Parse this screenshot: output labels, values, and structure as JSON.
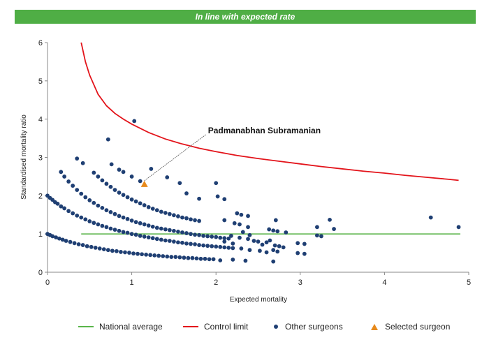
{
  "banner": {
    "text": "In line with expected rate"
  },
  "colors": {
    "banner": "#4fae45",
    "national_average": "#5ab54b",
    "control_limit": "#e3141b",
    "other_surgeons": "#1f3f73",
    "selected_surgeon": "#e78a1c"
  },
  "chart_data": {
    "type": "scatter",
    "title": "",
    "xlabel": "Expected mortality",
    "ylabel": "Standardised mortality ratio",
    "xlim": [
      0,
      5
    ],
    "ylim": [
      0,
      6
    ],
    "xticks": [
      0,
      1,
      2,
      3,
      4,
      5
    ],
    "yticks": [
      0,
      1,
      2,
      3,
      4,
      5,
      6
    ],
    "grid": false,
    "legend_position": "bottom",
    "national_average": {
      "name": "National average",
      "y": 1,
      "x_range": [
        0.4,
        4.9
      ]
    },
    "control_limit": {
      "name": "Control limit",
      "points": [
        [
          0.4,
          6.0
        ],
        [
          0.45,
          5.5
        ],
        [
          0.5,
          5.15
        ],
        [
          0.6,
          4.65
        ],
        [
          0.7,
          4.35
        ],
        [
          0.8,
          4.15
        ],
        [
          0.9,
          4.0
        ],
        [
          1.0,
          3.87
        ],
        [
          1.2,
          3.65
        ],
        [
          1.4,
          3.48
        ],
        [
          1.6,
          3.35
        ],
        [
          1.8,
          3.24
        ],
        [
          2.0,
          3.15
        ],
        [
          2.25,
          3.05
        ],
        [
          2.5,
          2.97
        ],
        [
          2.75,
          2.9
        ],
        [
          3.0,
          2.83
        ],
        [
          3.25,
          2.76
        ],
        [
          3.5,
          2.7
        ],
        [
          3.75,
          2.64
        ],
        [
          4.0,
          2.59
        ],
        [
          4.25,
          2.53
        ],
        [
          4.5,
          2.48
        ],
        [
          4.75,
          2.43
        ],
        [
          4.88,
          2.4
        ]
      ]
    },
    "selected_surgeon": {
      "name": "Selected surgeon",
      "label": "Padmanabhan Subramanian",
      "x": 1.15,
      "y": 2.3
    },
    "other_surgeons": {
      "name": "Other surgeons",
      "points": [
        [
          0.0,
          2.0
        ],
        [
          0.03,
          1.94
        ],
        [
          0.06,
          1.89
        ],
        [
          0.09,
          1.83
        ],
        [
          0.12,
          1.79
        ],
        [
          0.16,
          1.72
        ],
        [
          0.2,
          1.67
        ],
        [
          0.25,
          1.6
        ],
        [
          0.3,
          1.54
        ],
        [
          0.35,
          1.48
        ],
        [
          0.4,
          1.43
        ],
        [
          0.45,
          1.38
        ],
        [
          0.5,
          1.33
        ],
        [
          0.55,
          1.29
        ],
        [
          0.6,
          1.25
        ],
        [
          0.65,
          1.21
        ],
        [
          0.7,
          1.18
        ],
        [
          0.75,
          1.14
        ],
        [
          0.8,
          1.11
        ],
        [
          0.85,
          1.08
        ],
        [
          0.9,
          1.05
        ],
        [
          0.95,
          1.03
        ],
        [
          1.0,
          1.0
        ],
        [
          1.05,
          0.98
        ],
        [
          1.1,
          0.95
        ],
        [
          1.15,
          0.93
        ],
        [
          1.2,
          0.91
        ],
        [
          1.25,
          0.89
        ],
        [
          1.3,
          0.87
        ],
        [
          1.35,
          0.85
        ],
        [
          1.4,
          0.83
        ],
        [
          1.45,
          0.82
        ],
        [
          1.5,
          0.8
        ],
        [
          1.55,
          0.78
        ],
        [
          1.6,
          0.77
        ],
        [
          1.65,
          0.75
        ],
        [
          1.7,
          0.74
        ],
        [
          1.75,
          0.73
        ],
        [
          1.8,
          0.71
        ],
        [
          1.85,
          0.7
        ],
        [
          1.9,
          0.69
        ],
        [
          1.95,
          0.68
        ],
        [
          2.0,
          0.67
        ],
        [
          2.05,
          0.66
        ],
        [
          2.1,
          0.65
        ],
        [
          2.15,
          0.64
        ],
        [
          2.2,
          0.63
        ],
        [
          0.0,
          1.0
        ],
        [
          0.03,
          0.97
        ],
        [
          0.06,
          0.94
        ],
        [
          0.1,
          0.91
        ],
        [
          0.14,
          0.88
        ],
        [
          0.18,
          0.85
        ],
        [
          0.22,
          0.82
        ],
        [
          0.27,
          0.79
        ],
        [
          0.32,
          0.76
        ],
        [
          0.37,
          0.73
        ],
        [
          0.42,
          0.71
        ],
        [
          0.47,
          0.68
        ],
        [
          0.52,
          0.66
        ],
        [
          0.57,
          0.64
        ],
        [
          0.62,
          0.62
        ],
        [
          0.67,
          0.6
        ],
        [
          0.72,
          0.58
        ],
        [
          0.77,
          0.56
        ],
        [
          0.82,
          0.55
        ],
        [
          0.87,
          0.53
        ],
        [
          0.92,
          0.52
        ],
        [
          0.97,
          0.51
        ],
        [
          1.02,
          0.49
        ],
        [
          1.07,
          0.48
        ],
        [
          1.12,
          0.47
        ],
        [
          1.17,
          0.46
        ],
        [
          1.22,
          0.45
        ],
        [
          1.27,
          0.44
        ],
        [
          1.32,
          0.43
        ],
        [
          1.37,
          0.42
        ],
        [
          1.42,
          0.41
        ],
        [
          1.47,
          0.4
        ],
        [
          1.52,
          0.4
        ],
        [
          1.57,
          0.39
        ],
        [
          1.62,
          0.38
        ],
        [
          1.67,
          0.37
        ],
        [
          1.72,
          0.37
        ],
        [
          1.77,
          0.36
        ],
        [
          1.82,
          0.35
        ],
        [
          1.87,
          0.35
        ],
        [
          1.92,
          0.34
        ],
        [
          1.97,
          0.34
        ],
        [
          0.2,
          2.5
        ],
        [
          0.25,
          2.37
        ],
        [
          0.3,
          2.26
        ],
        [
          0.35,
          2.15
        ],
        [
          0.4,
          2.05
        ],
        [
          0.45,
          1.96
        ],
        [
          0.5,
          1.88
        ],
        [
          0.55,
          1.81
        ],
        [
          0.6,
          1.74
        ],
        [
          0.65,
          1.68
        ],
        [
          0.7,
          1.62
        ],
        [
          0.75,
          1.57
        ],
        [
          0.8,
          1.52
        ],
        [
          0.85,
          1.47
        ],
        [
          0.9,
          1.43
        ],
        [
          0.95,
          1.39
        ],
        [
          1.0,
          1.35
        ],
        [
          1.05,
          1.31
        ],
        [
          1.1,
          1.28
        ],
        [
          1.15,
          1.25
        ],
        [
          1.2,
          1.22
        ],
        [
          1.25,
          1.19
        ],
        [
          1.3,
          1.16
        ],
        [
          1.35,
          1.14
        ],
        [
          1.4,
          1.12
        ],
        [
          1.45,
          1.1
        ],
        [
          1.5,
          1.08
        ],
        [
          1.55,
          1.06
        ],
        [
          1.6,
          1.04
        ],
        [
          1.65,
          1.02
        ],
        [
          1.7,
          1.0
        ],
        [
          1.75,
          0.98
        ],
        [
          1.8,
          0.97
        ],
        [
          1.85,
          0.95
        ],
        [
          1.9,
          0.94
        ],
        [
          1.95,
          0.93
        ],
        [
          2.0,
          0.92
        ],
        [
          2.05,
          0.9
        ],
        [
          2.1,
          0.89
        ],
        [
          2.15,
          0.88
        ],
        [
          0.55,
          2.6
        ],
        [
          0.6,
          2.5
        ],
        [
          0.65,
          2.4
        ],
        [
          0.7,
          2.31
        ],
        [
          0.75,
          2.23
        ],
        [
          0.8,
          2.15
        ],
        [
          0.85,
          2.08
        ],
        [
          0.9,
          2.02
        ],
        [
          0.95,
          1.96
        ],
        [
          1.0,
          1.9
        ],
        [
          1.05,
          1.85
        ],
        [
          1.1,
          1.8
        ],
        [
          1.15,
          1.75
        ],
        [
          1.2,
          1.7
        ],
        [
          1.25,
          1.66
        ],
        [
          1.3,
          1.62
        ],
        [
          1.35,
          1.58
        ],
        [
          1.4,
          1.55
        ],
        [
          1.45,
          1.52
        ],
        [
          1.5,
          1.49
        ],
        [
          1.55,
          1.46
        ],
        [
          1.6,
          1.43
        ],
        [
          1.65,
          1.41
        ],
        [
          1.7,
          1.38
        ],
        [
          1.75,
          1.36
        ],
        [
          1.8,
          1.34
        ],
        [
          1.03,
          3.95
        ],
        [
          0.72,
          3.47
        ],
        [
          0.35,
          2.97
        ],
        [
          0.42,
          2.85
        ],
        [
          0.76,
          2.82
        ],
        [
          0.85,
          2.68
        ],
        [
          0.9,
          2.62
        ],
        [
          0.16,
          2.62
        ],
        [
          1.0,
          2.5
        ],
        [
          1.1,
          2.38
        ],
        [
          1.23,
          2.7
        ],
        [
          1.42,
          2.48
        ],
        [
          1.57,
          2.33
        ],
        [
          1.65,
          2.06
        ],
        [
          1.8,
          1.92
        ],
        [
          2.0,
          2.33
        ],
        [
          2.02,
          1.98
        ],
        [
          2.1,
          1.91
        ],
        [
          2.25,
          1.54
        ],
        [
          2.3,
          1.5
        ],
        [
          2.38,
          1.47
        ],
        [
          2.1,
          1.36
        ],
        [
          2.22,
          1.28
        ],
        [
          2.28,
          1.25
        ],
        [
          2.38,
          1.18
        ],
        [
          2.32,
          1.05
        ],
        [
          2.4,
          0.97
        ],
        [
          2.18,
          0.95
        ],
        [
          2.28,
          0.9
        ],
        [
          2.38,
          0.87
        ],
        [
          2.45,
          0.82
        ],
        [
          2.5,
          0.8
        ],
        [
          2.6,
          0.78
        ],
        [
          2.55,
          0.72
        ],
        [
          2.7,
          0.7
        ],
        [
          2.75,
          0.68
        ],
        [
          2.8,
          0.65
        ],
        [
          2.1,
          0.8
        ],
        [
          2.2,
          0.75
        ],
        [
          2.3,
          0.62
        ],
        [
          2.4,
          0.58
        ],
        [
          2.52,
          0.56
        ],
        [
          2.6,
          0.52
        ],
        [
          2.2,
          0.33
        ],
        [
          2.35,
          0.3
        ],
        [
          2.05,
          0.31
        ],
        [
          2.63,
          1.12
        ],
        [
          2.68,
          1.09
        ],
        [
          2.71,
          1.36
        ],
        [
          2.73,
          1.07
        ],
        [
          2.83,
          1.04
        ],
        [
          2.64,
          0.83
        ],
        [
          2.68,
          0.58
        ],
        [
          2.73,
          0.54
        ],
        [
          2.68,
          0.28
        ],
        [
          2.97,
          0.76
        ],
        [
          3.05,
          0.74
        ],
        [
          2.97,
          0.5
        ],
        [
          3.05,
          0.48
        ],
        [
          3.2,
          1.18
        ],
        [
          3.2,
          0.96
        ],
        [
          3.25,
          0.94
        ],
        [
          3.35,
          1.37
        ],
        [
          3.4,
          1.13
        ],
        [
          4.55,
          1.43
        ],
        [
          4.88,
          1.18
        ]
      ]
    }
  }
}
